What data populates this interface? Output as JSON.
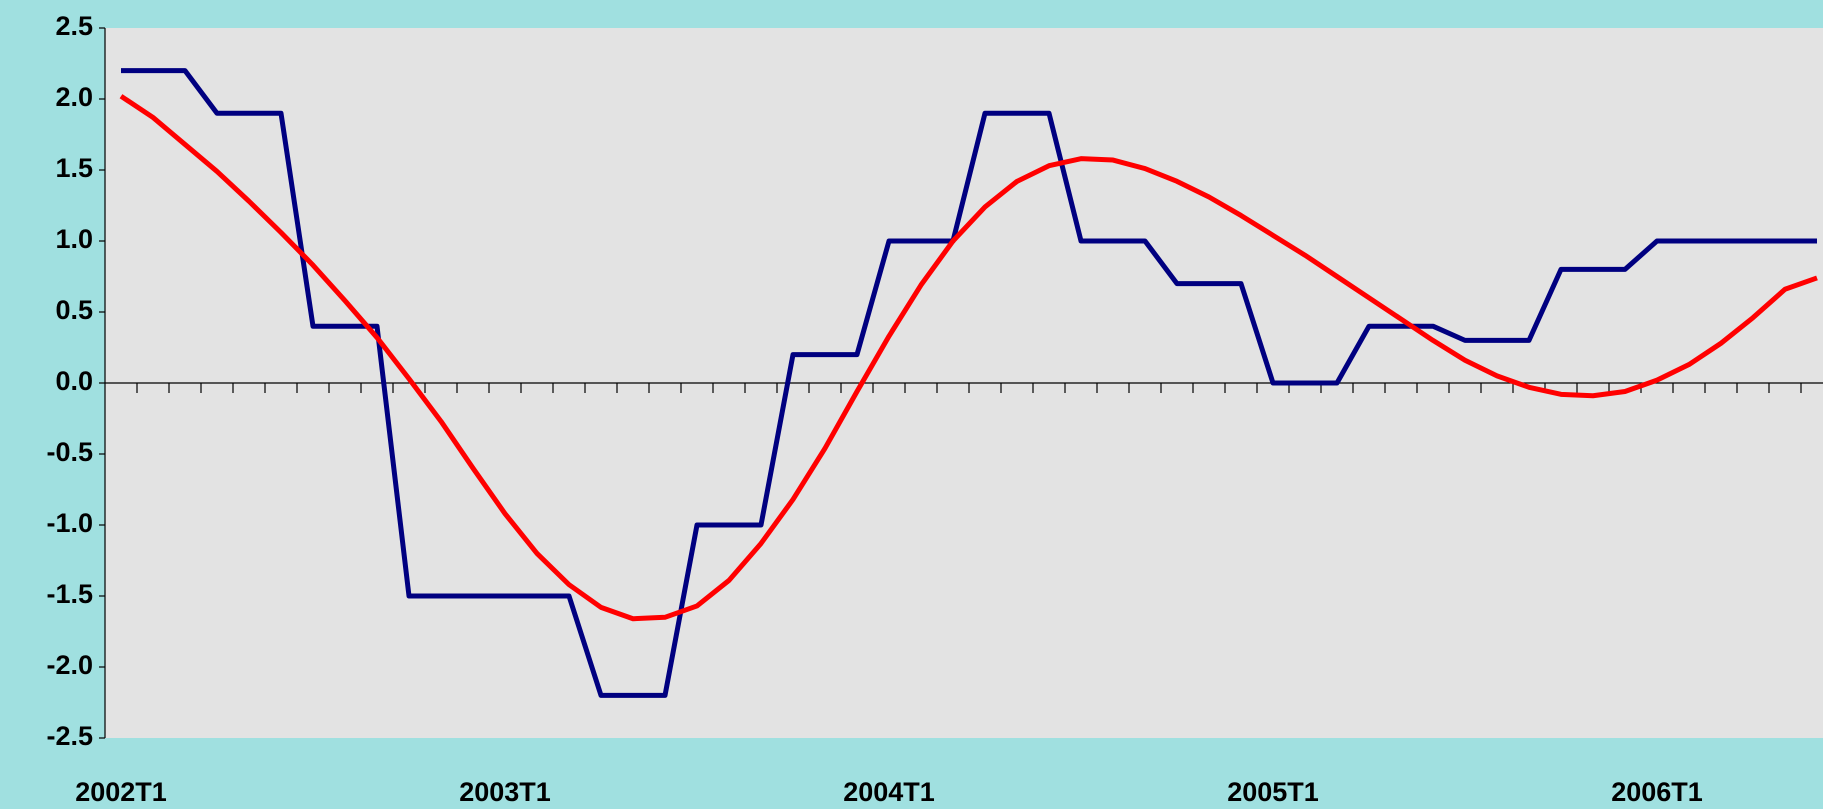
{
  "chart_data": {
    "type": "line",
    "categories": [
      "2002T1",
      null,
      null,
      null,
      null,
      null,
      null,
      null,
      null,
      null,
      null,
      null,
      "2003T1",
      null,
      null,
      null,
      null,
      null,
      null,
      null,
      null,
      null,
      null,
      null,
      "2004T1",
      null,
      null,
      null,
      null,
      null,
      null,
      null,
      null,
      null,
      null,
      null,
      "2005T1",
      null,
      null,
      null,
      null,
      null,
      null,
      null,
      null,
      null,
      null,
      null,
      "2006T1",
      null,
      null,
      null,
      null,
      null
    ],
    "series": [
      {
        "color": "#000080",
        "values": [
          2.2,
          2.2,
          2.2,
          1.9,
          1.9,
          1.9,
          0.4,
          0.4,
          0.4,
          -1.5,
          -1.5,
          -1.5,
          -1.5,
          -1.5,
          -1.5,
          -2.2,
          -2.2,
          -2.2,
          -1.0,
          -1.0,
          -1.0,
          0.2,
          0.2,
          0.2,
          1.0,
          1.0,
          1.0,
          1.9,
          1.9,
          1.9,
          1.0,
          1.0,
          1.0,
          0.7,
          0.7,
          0.7,
          0.0,
          0.0,
          0.0,
          0.4,
          0.4,
          0.4,
          0.3,
          0.3,
          0.3,
          0.8,
          0.8,
          0.8,
          1.0,
          1.0,
          1.0,
          1.0,
          1.0,
          1.0
        ]
      },
      {
        "color": "#ff0000",
        "values": [
          2.02,
          1.87,
          1.68,
          1.49,
          1.28,
          1.06,
          0.83,
          0.58,
          0.32,
          0.03,
          -0.27,
          -0.6,
          -0.92,
          -1.2,
          -1.42,
          -1.58,
          -1.66,
          -1.65,
          -1.57,
          -1.39,
          -1.13,
          -0.82,
          -0.46,
          -0.06,
          0.33,
          0.69,
          1.0,
          1.24,
          1.42,
          1.53,
          1.58,
          1.57,
          1.51,
          1.42,
          1.31,
          1.18,
          1.04,
          0.9,
          0.75,
          0.6,
          0.45,
          0.3,
          0.16,
          0.05,
          -0.03,
          -0.08,
          -0.09,
          -0.06,
          0.02,
          0.13,
          0.28,
          0.46,
          0.66,
          0.74
        ]
      }
    ],
    "ylim": [
      -2.5,
      2.5
    ],
    "yticks": [
      2.5,
      {
        "value": 2,
        "label": "2.0"
      },
      1.5,
      {
        "value": 1,
        "label": "1.0"
      },
      0.5,
      {
        "value": 0,
        "label": "0.0"
      },
      -0.5,
      {
        "value": -1,
        "label": "-1.0"
      },
      -1.5,
      {
        "value": -2,
        "label": "-2.0"
      },
      -2.5
    ],
    "grid": false
  }
}
